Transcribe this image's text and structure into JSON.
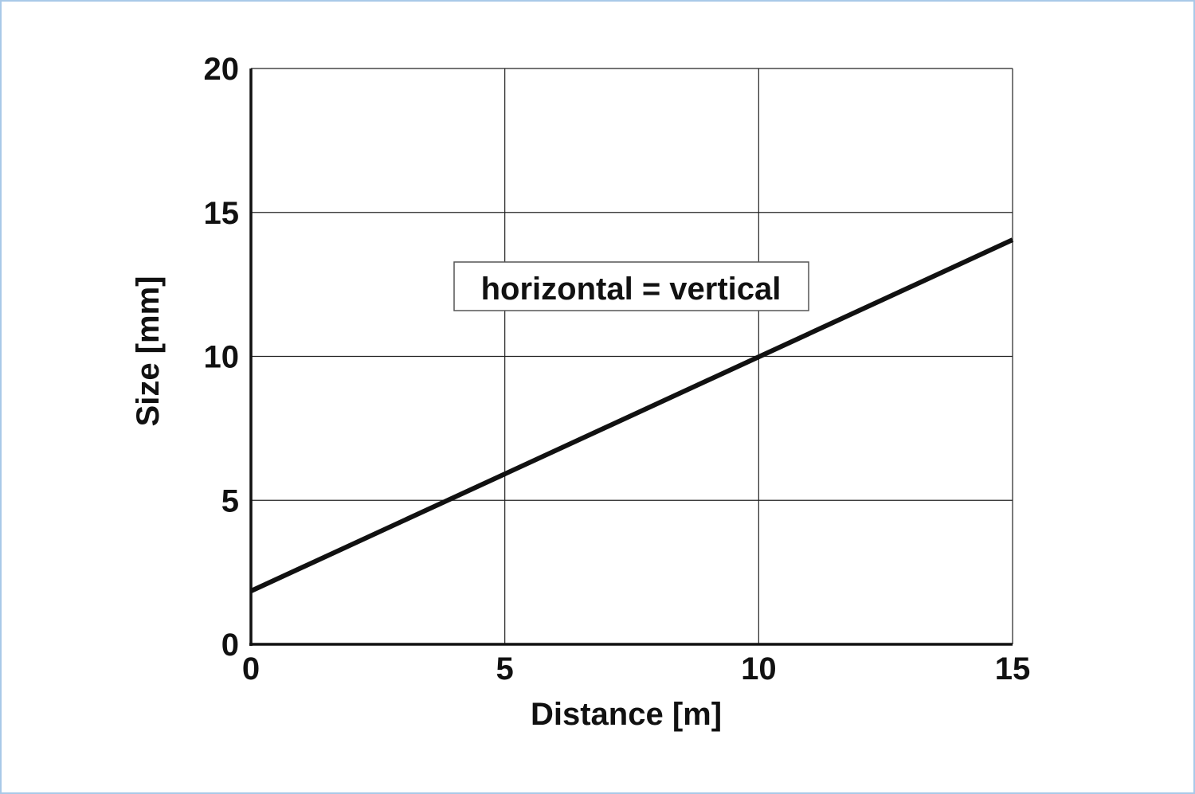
{
  "chart_data": {
    "type": "line",
    "title": "",
    "xlabel": "Distance [m]",
    "ylabel": "Size [mm]",
    "xlim": [
      0,
      15
    ],
    "ylim": [
      0,
      20
    ],
    "xticks": [
      "0",
      "5",
      "10",
      "15"
    ],
    "yticks": [
      "0",
      "5",
      "10",
      "15",
      "20"
    ],
    "grid": true,
    "series": [
      {
        "x": [
          0,
          15
        ],
        "y": [
          1.85,
          14.05
        ],
        "color": "#111111"
      }
    ],
    "annotation": "horizontal = vertical",
    "frame_color": "#a9c9e8"
  }
}
